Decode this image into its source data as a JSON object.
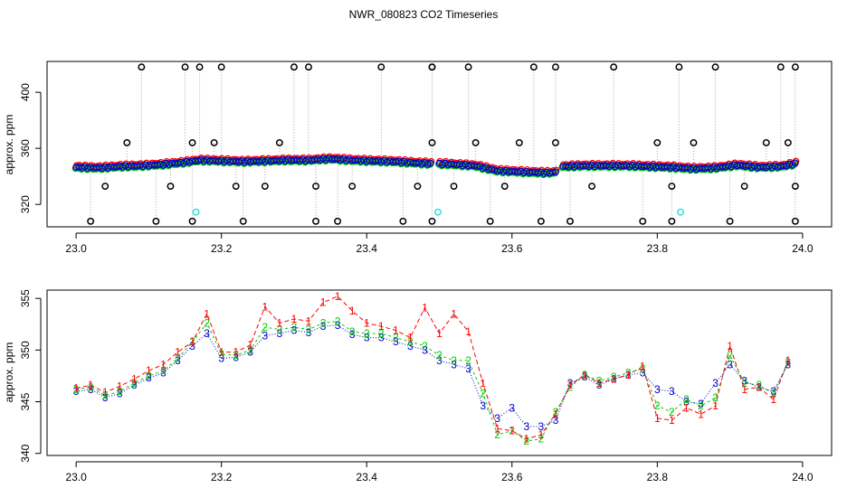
{
  "title": "NWR_080823  CO2 Timeseries",
  "colors": {
    "red": "#ff0000",
    "green": "#00cc00",
    "blue": "#0000cc",
    "black": "#000000",
    "cyan": "#33dddd",
    "gray": "#aaaaaa"
  },
  "chart_data": [
    {
      "type": "scatter",
      "title": "",
      "xlabel": "",
      "ylabel": "approx. ppm",
      "xlim": [
        22.96,
        24.04
      ],
      "ylim": [
        304,
        422
      ],
      "xticks": [
        23.0,
        23.2,
        23.4,
        23.6,
        23.8,
        24.0
      ],
      "xtick_labels": [
        "23.0",
        "23.2",
        "23.4",
        "23.6",
        "23.8",
        "24.0"
      ],
      "yticks": [
        320,
        360,
        400
      ],
      "ytick_labels": [
        "320",
        "360",
        "400"
      ],
      "series_description": "three overlapping series (red, green, blue circles) along a baseline ~341-355 ppm, black circle outliers with gray dotted drop lines, cyan markers",
      "baseline_segments": [
        {
          "x": [
            23.0,
            23.03,
            23.06,
            23.09,
            23.12,
            23.15,
            23.17,
            23.2,
            23.23,
            23.26,
            23.29,
            23.32,
            23.35,
            23.38,
            23.41,
            23.44,
            23.47,
            23.49
          ]
        },
        {
          "x": [
            23.5,
            23.52,
            23.55,
            23.58,
            23.6,
            23.62,
            23.65,
            23.66
          ]
        },
        {
          "x": [
            23.67,
            23.7,
            23.73,
            23.76,
            23.79,
            23.82,
            23.85,
            23.88,
            23.91,
            23.94,
            23.97,
            23.99
          ]
        }
      ],
      "baseline_values": [
        [
          346.5,
          346.0,
          347.0,
          347.5,
          348.5,
          350.0,
          351.5,
          351.0,
          350.5,
          351.0,
          351.5,
          351.5,
          352.5,
          351.5,
          351.0,
          350.5,
          349.5,
          349.0
        ],
        [
          349.0,
          348.5,
          347.5,
          344.0,
          343.5,
          343.0,
          342.5,
          343.0
        ],
        [
          347.0,
          347.5,
          347.5,
          347.5,
          347.0,
          346.5,
          345.5,
          346.0,
          348.0,
          346.5,
          347.0,
          349.0
        ]
      ],
      "black_outliers": {
        "x": [
          23.09,
          23.15,
          23.17,
          23.2,
          23.3,
          23.32,
          23.42,
          23.49,
          23.49,
          23.54,
          23.63,
          23.66,
          23.74,
          23.83,
          23.88,
          23.97,
          23.99,
          23.07,
          23.16,
          23.19,
          23.28,
          23.49,
          23.55,
          23.61,
          23.66,
          23.8,
          23.85,
          23.95,
          23.98,
          23.04,
          23.13,
          23.22,
          23.26,
          23.33,
          23.38,
          23.47,
          23.52,
          23.59,
          23.71,
          23.82,
          23.92,
          23.99,
          23.02,
          23.11,
          23.16,
          23.23,
          23.33,
          23.36,
          23.45,
          23.49,
          23.57,
          23.64,
          23.68,
          23.78,
          23.82,
          23.9,
          23.99
        ],
        "y": [
          418,
          418,
          418,
          418,
          418,
          418,
          418,
          418,
          418,
          418,
          418,
          418,
          418,
          418,
          418,
          418,
          418,
          364,
          364,
          364,
          364,
          364,
          364,
          364,
          364,
          364,
          364,
          364,
          364,
          333,
          333,
          333,
          333,
          333,
          333,
          333,
          333,
          333,
          333,
          333,
          333,
          333,
          308,
          308,
          308,
          308,
          308,
          308,
          308,
          308,
          308,
          308,
          308,
          308,
          308,
          308,
          308
        ]
      },
      "cyan_points": {
        "x": [
          23.165,
          23.498,
          23.832
        ],
        "y": [
          314.5,
          314.5,
          314.5
        ]
      }
    },
    {
      "type": "line",
      "title": "",
      "xlabel": "",
      "ylabel": "approx. ppm",
      "xlim": [
        22.96,
        24.04
      ],
      "ylim": [
        339.8,
        355.8
      ],
      "xticks": [
        23.0,
        23.2,
        23.4,
        23.6,
        23.8,
        24.0
      ],
      "xtick_labels": [
        "23.0",
        "23.2",
        "23.4",
        "23.6",
        "23.8",
        "24.0"
      ],
      "yticks": [
        340,
        345,
        350,
        355
      ],
      "ytick_labels": [
        "340",
        "345",
        "350",
        "355"
      ],
      "x": [
        23.0,
        23.02,
        23.04,
        23.06,
        23.08,
        23.1,
        23.12,
        23.14,
        23.16,
        23.18,
        23.2,
        23.22,
        23.24,
        23.26,
        23.28,
        23.3,
        23.32,
        23.34,
        23.36,
        23.38,
        23.4,
        23.42,
        23.44,
        23.46,
        23.48,
        23.5,
        23.52,
        23.54,
        23.56,
        23.58,
        23.6,
        23.62,
        23.64,
        23.66,
        23.68,
        23.7,
        23.72,
        23.74,
        23.76,
        23.78,
        23.8,
        23.82,
        23.84,
        23.86,
        23.88,
        23.9,
        23.92,
        23.94,
        23.96,
        23.98
      ],
      "series": [
        {
          "name": "1",
          "marker": "1",
          "values": [
            346.3,
            346.6,
            345.9,
            346.5,
            347.2,
            348.0,
            348.6,
            349.8,
            350.8,
            353.5,
            349.8,
            349.8,
            350.5,
            354.2,
            352.6,
            353.0,
            352.8,
            354.6,
            355.2,
            353.8,
            352.6,
            352.3,
            351.9,
            351.2,
            354.1,
            351.6,
            353.5,
            351.8,
            346.8,
            342.4,
            342.2,
            341.4,
            341.8,
            343.8,
            346.6,
            347.6,
            346.8,
            347.2,
            347.6,
            348.4,
            343.4,
            343.2,
            344.4,
            343.8,
            344.6,
            350.4,
            346.2,
            346.4,
            345.2,
            349.0
          ]
        },
        {
          "name": "2",
          "marker": "2",
          "values": [
            346.2,
            346.4,
            345.6,
            346.0,
            346.8,
            347.5,
            348.0,
            349.2,
            350.8,
            352.6,
            349.6,
            349.5,
            350.0,
            352.2,
            352.0,
            352.2,
            352.0,
            352.6,
            352.8,
            351.8,
            351.6,
            351.6,
            351.2,
            350.8,
            350.4,
            349.5,
            349.0,
            349.0,
            345.8,
            341.8,
            342.2,
            341.2,
            341.4,
            344.0,
            346.4,
            347.6,
            347.0,
            347.4,
            347.8,
            348.2,
            344.6,
            344.0,
            345.2,
            344.6,
            345.4,
            349.5,
            346.8,
            346.6,
            345.8,
            348.8
          ]
        },
        {
          "name": "3",
          "marker": "3",
          "values": [
            346.0,
            346.2,
            345.4,
            345.8,
            346.6,
            347.3,
            347.8,
            349.0,
            350.4,
            351.6,
            349.2,
            349.3,
            349.8,
            351.4,
            351.6,
            351.9,
            351.7,
            352.3,
            352.4,
            351.5,
            351.2,
            351.2,
            350.8,
            350.4,
            350.0,
            349.0,
            348.6,
            348.2,
            344.6,
            343.4,
            344.4,
            342.6,
            342.6,
            343.2,
            346.8,
            347.4,
            346.6,
            347.2,
            347.6,
            347.8,
            346.2,
            346.0,
            345.0,
            344.8,
            346.8,
            348.6,
            347.0,
            346.4,
            346.0,
            348.6
          ]
        }
      ],
      "series_colors": [
        "#ff0000",
        "#00cc00",
        "#0000cc"
      ]
    }
  ]
}
